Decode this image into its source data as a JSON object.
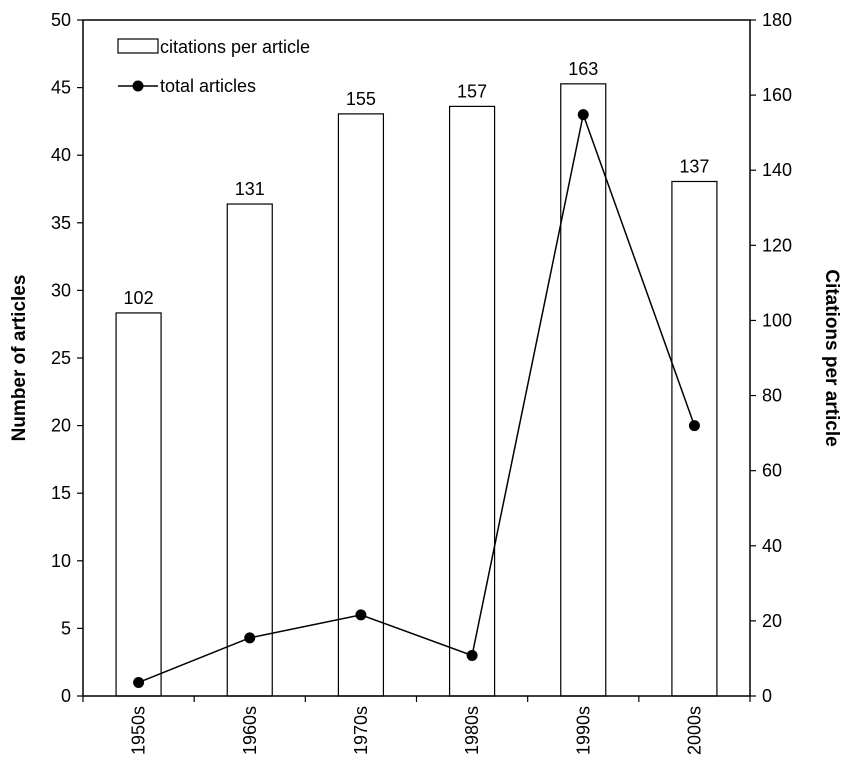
{
  "chart_data": {
    "type": "bar",
    "categories": [
      "1950s",
      "1960s",
      "1970s",
      "1980s",
      "1990s",
      "2000s"
    ],
    "series": [
      {
        "name": "citations per article",
        "type": "bar",
        "axis": "right",
        "values": [
          102,
          131,
          155,
          157,
          163,
          137
        ],
        "data_labels": [
          "102",
          "131",
          "155",
          "157",
          "163",
          "137"
        ]
      },
      {
        "name": "total articles",
        "type": "line",
        "axis": "left",
        "values": [
          1,
          4.3,
          6,
          3,
          43,
          20
        ]
      }
    ],
    "ylabel": "Number of articles",
    "y2label": "Citations per article",
    "ylim": [
      0,
      50
    ],
    "y2lim": [
      0,
      180
    ],
    "yticks": [
      "0",
      "5",
      "10",
      "15",
      "20",
      "25",
      "30",
      "35",
      "40",
      "45",
      "50"
    ],
    "y2ticks": [
      "0",
      "20",
      "40",
      "60",
      "80",
      "100",
      "120",
      "140",
      "160",
      "180"
    ],
    "legend_position": "top-left",
    "grid": false,
    "colors": {
      "bar_fill": "#ffffff",
      "bar_stroke": "#000000",
      "line": "#000000",
      "marker": "#000000"
    }
  }
}
